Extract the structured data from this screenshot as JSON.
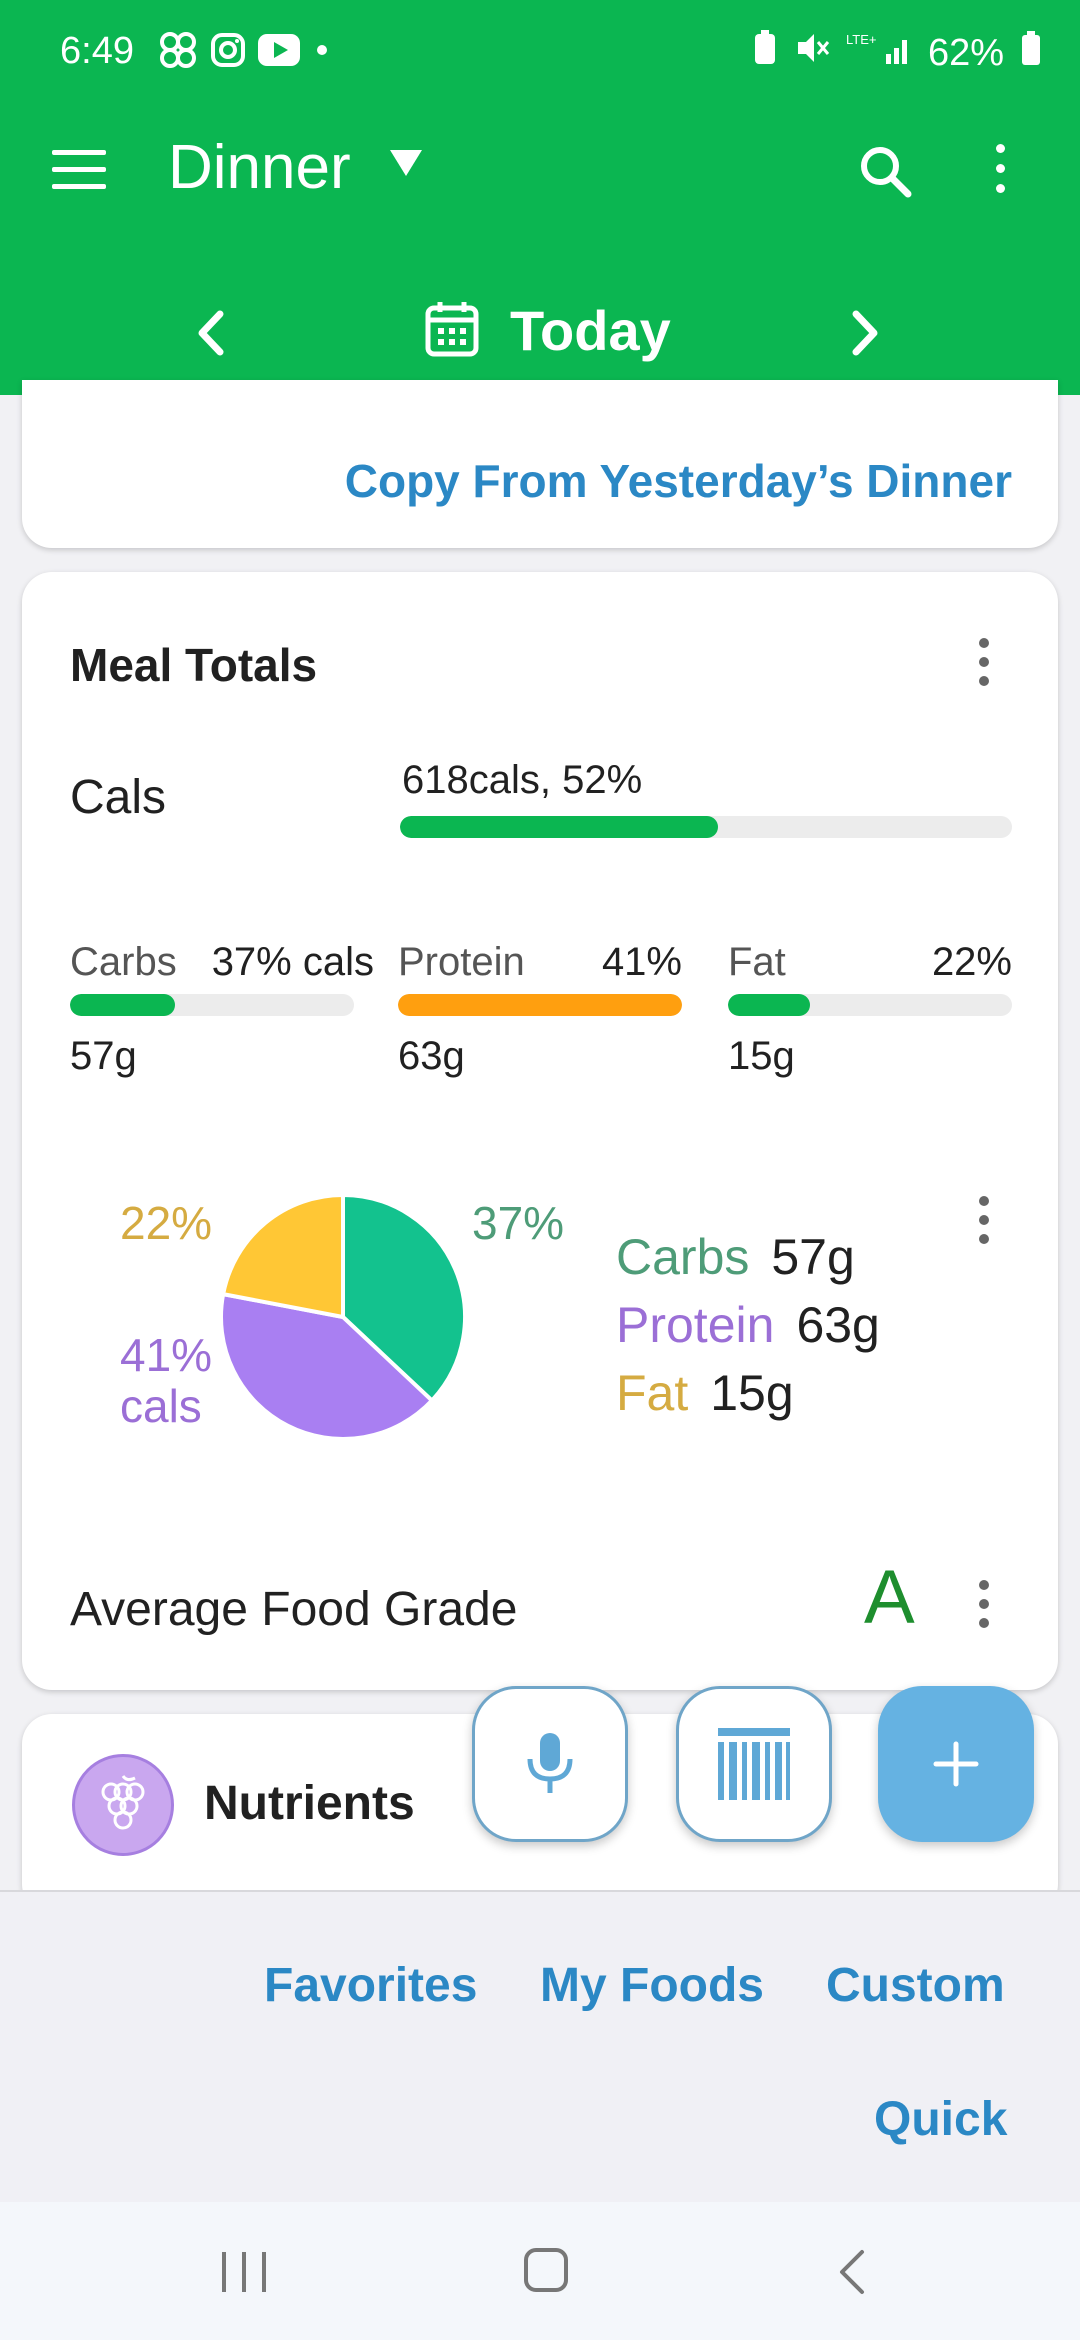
{
  "status_bar": {
    "time": "6:49",
    "battery": "62%"
  },
  "toolbar": {
    "meal": "Dinner"
  },
  "date_nav": {
    "label": "Today"
  },
  "copy_card": {
    "link": "Copy From Yesterday’s Dinner"
  },
  "meal_totals": {
    "title": "Meal Totals",
    "cals": {
      "label": "Cals",
      "value": "618cals, 52%",
      "fraction": 0.52
    },
    "macros": [
      {
        "name": "Carbs",
        "pct": "37% cals",
        "grams": "57g",
        "fraction": 0.37,
        "color": "#0bb651"
      },
      {
        "name": "Protein",
        "pct": "41%",
        "grams": "63g",
        "fraction": 1.0,
        "color": "#ff9f0f"
      },
      {
        "name": "Fat",
        "pct": "22%",
        "grams": "15g",
        "fraction": 0.29,
        "color": "#0bb651"
      }
    ],
    "grade_label": "Average Food Grade",
    "grade_value": "A"
  },
  "chart_data": {
    "type": "pie",
    "slices": [
      {
        "name": "Carbs",
        "value": 37,
        "color": "#13c28e"
      },
      {
        "name": "Protein",
        "value": 41,
        "color": "#a97ff2"
      },
      {
        "name": "Fat",
        "value": 22,
        "color": "#ffc735"
      }
    ],
    "labels": {
      "carbs": "37%",
      "protein_pct": "41%",
      "protein_unit": "cals",
      "fat": "22%"
    },
    "legend": [
      {
        "name": "Carbs",
        "grams": "57g",
        "color": "#4e9c78"
      },
      {
        "name": "Protein",
        "grams": "63g",
        "color": "#9b6fd6"
      },
      {
        "name": "Fat",
        "grams": "15g",
        "color": "#d5ab41"
      }
    ]
  },
  "nutrients": {
    "label": "Nutrients"
  },
  "bottom_links": {
    "favorites": "Favorites",
    "my_foods": "My Foods",
    "custom": "Custom",
    "quick": "Quick"
  }
}
